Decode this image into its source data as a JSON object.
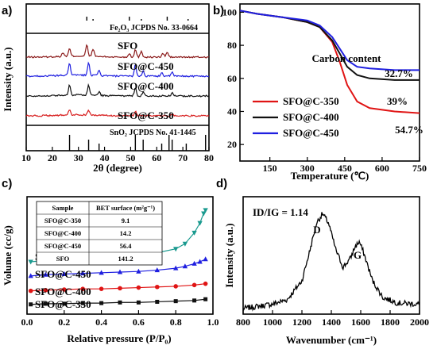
{
  "chart_data": [
    {
      "panel": "a)",
      "type": "line",
      "xlabel": "2θ (degree)",
      "ylabel": "Intensity (a.u.)",
      "xlim": [
        10,
        80
      ],
      "xticks": [
        10,
        20,
        30,
        40,
        50,
        60,
        70,
        80
      ],
      "reference_top": {
        "label": "Fe2O3 JCPDS No. 33-0664",
        "peaks": [
          24.1,
          33.2,
          35.6,
          40.9,
          49.5,
          54.1,
          62.4,
          64.0,
          72.0,
          75.5
        ]
      },
      "reference_bottom": {
        "label": "SnO2 JCPDS No. 41-1445",
        "peaks": [
          26.6,
          33.9,
          37.9,
          51.8,
          54.8,
          61.9,
          64.7,
          65.9,
          71.3,
          78.7
        ]
      },
      "series": [
        {
          "name": "SFO",
          "color": "#8b1a1a",
          "peaks": [
            [
              24.1,
              0.3
            ],
            [
              26.6,
              0.6
            ],
            [
              33.2,
              0.9
            ],
            [
              35.6,
              0.6
            ],
            [
              49.5,
              0.3
            ],
            [
              51.8,
              0.6
            ],
            [
              54.1,
              0.5
            ],
            [
              62.4,
              0.3
            ],
            [
              64.0,
              0.4
            ]
          ]
        },
        {
          "name": "SFO@C-450",
          "color": "#1f1fe0",
          "peaks": [
            [
              26.6,
              1.0
            ],
            [
              33.9,
              1.0
            ],
            [
              37.9,
              0.4
            ],
            [
              51.8,
              0.9
            ],
            [
              54.8,
              0.4
            ],
            [
              61.9,
              0.3
            ],
            [
              65.9,
              0.3
            ]
          ]
        },
        {
          "name": "SFO@C-400",
          "color": "#111111",
          "peaks": [
            [
              26.6,
              0.8
            ],
            [
              33.9,
              0.8
            ],
            [
              37.9,
              0.3
            ],
            [
              51.8,
              0.7
            ],
            [
              54.8,
              0.3
            ],
            [
              65.9,
              0.25
            ]
          ]
        },
        {
          "name": "SFO@C-350",
          "color": "#d71c1c",
          "peaks": [
            [
              26.6,
              0.4
            ],
            [
              33.9,
              0.4
            ],
            [
              51.8,
              0.35
            ],
            [
              65.9,
              0.15
            ]
          ]
        }
      ]
    },
    {
      "panel": "b)",
      "type": "line",
      "xlabel": "Temperature (℃)",
      "ylabel": "",
      "xlim": [
        30,
        750
      ],
      "ylim": [
        10,
        105
      ],
      "xticks": [
        150,
        300,
        450,
        600,
        750
      ],
      "yticks": [
        20,
        40,
        60,
        80,
        100
      ],
      "legend_title": "Carbon content",
      "legend_position": "bottom-left",
      "series": [
        {
          "name": "SFO@C-350",
          "color": "#e01414",
          "carbon": "54.7%",
          "x": [
            30,
            100,
            200,
            300,
            350,
            400,
            430,
            460,
            500,
            550,
            650,
            750
          ],
          "y": [
            101,
            99,
            97,
            94,
            91,
            82,
            70,
            56,
            46,
            42,
            40,
            39
          ]
        },
        {
          "name": "SFO@C-400",
          "color": "#111111",
          "carbon": "39%",
          "x": [
            30,
            100,
            200,
            300,
            350,
            400,
            430,
            460,
            500,
            550,
            650,
            750
          ],
          "y": [
            101,
            99,
            97,
            94,
            91,
            83,
            75,
            67,
            62,
            60,
            59,
            59
          ]
        },
        {
          "name": "SFO@C-450",
          "color": "#1f1fe0",
          "carbon": "32.7%",
          "x": [
            30,
            100,
            200,
            300,
            350,
            400,
            430,
            460,
            500,
            550,
            650,
            750
          ],
          "y": [
            101,
            99,
            97,
            95,
            92,
            85,
            78,
            71,
            67,
            66,
            65,
            65
          ]
        }
      ]
    },
    {
      "panel": "c)",
      "type": "line",
      "xlabel": "Relative pressure (P/P₀)",
      "ylabel": "Volume (cc/g)",
      "xlim": [
        0,
        1.0
      ],
      "xticks": [
        0.0,
        0.2,
        0.4,
        0.6,
        0.8,
        1.0
      ],
      "table": {
        "headers": [
          "Sample",
          "BET surface (m²g⁻¹)"
        ],
        "rows": [
          [
            "SFO@C-350",
            "9.1"
          ],
          [
            "SFO@C-400",
            "14.2"
          ],
          [
            "SFO@C-450",
            "56.4"
          ],
          [
            "SFO",
            "141.2"
          ]
        ]
      },
      "series": [
        {
          "name": "SFO",
          "color": "#1a9a8f",
          "marker": "triangle-down",
          "offset": 0.72,
          "x": [
            0.02,
            0.1,
            0.2,
            0.3,
            0.4,
            0.5,
            0.6,
            0.7,
            0.8,
            0.85,
            0.9,
            0.93,
            0.95,
            0.96
          ],
          "y": [
            0.0,
            0.02,
            0.04,
            0.05,
            0.07,
            0.09,
            0.11,
            0.14,
            0.2,
            0.28,
            0.45,
            0.6,
            0.75,
            0.8
          ]
        },
        {
          "name": "SFO@C-450",
          "color": "#1f1fe0",
          "marker": "triangle-up",
          "offset": 0.5,
          "x": [
            0.02,
            0.1,
            0.2,
            0.3,
            0.4,
            0.5,
            0.6,
            0.7,
            0.8,
            0.85,
            0.9,
            0.93,
            0.96
          ],
          "y": [
            0.0,
            0.02,
            0.03,
            0.04,
            0.05,
            0.06,
            0.07,
            0.09,
            0.12,
            0.15,
            0.19,
            0.22,
            0.26
          ]
        },
        {
          "name": "SFO@C-400",
          "color": "#e01414",
          "marker": "circle",
          "offset": 0.27,
          "x": [
            0.02,
            0.1,
            0.2,
            0.3,
            0.4,
            0.5,
            0.6,
            0.7,
            0.8,
            0.9,
            0.96
          ],
          "y": [
            0.0,
            0.01,
            0.02,
            0.03,
            0.03,
            0.04,
            0.05,
            0.06,
            0.07,
            0.09,
            0.11
          ]
        },
        {
          "name": "SFO@C-350",
          "color": "#111111",
          "marker": "square",
          "offset": 0.06,
          "x": [
            0.02,
            0.1,
            0.2,
            0.3,
            0.4,
            0.5,
            0.6,
            0.7,
            0.8,
            0.9,
            0.96
          ],
          "y": [
            0.0,
            0.01,
            0.01,
            0.02,
            0.02,
            0.03,
            0.03,
            0.04,
            0.05,
            0.06,
            0.08
          ]
        }
      ]
    },
    {
      "panel": "d)",
      "type": "line",
      "xlabel": "Wavenumber (cm⁻¹)",
      "ylabel": "Intensity (a.u.)",
      "xlim": [
        800,
        2000
      ],
      "xticks": [
        800,
        1000,
        1200,
        1400,
        1600,
        1800,
        2000
      ],
      "annotation": "ID/IG = 1.14",
      "peak_labels": [
        {
          "text": "D",
          "x": 1340
        },
        {
          "text": "G",
          "x": 1590
        }
      ],
      "series": [
        {
          "name": "",
          "color": "#000000",
          "x": [
            800,
            900,
            1000,
            1100,
            1200,
            1250,
            1300,
            1340,
            1380,
            1430,
            1480,
            1530,
            1560,
            1590,
            1620,
            1680,
            1750,
            1850,
            2000
          ],
          "y": [
            0.05,
            0.07,
            0.09,
            0.13,
            0.3,
            0.55,
            0.82,
            0.9,
            0.82,
            0.58,
            0.42,
            0.5,
            0.6,
            0.65,
            0.55,
            0.3,
            0.15,
            0.1,
            0.09
          ]
        }
      ]
    }
  ],
  "labels": {
    "panel_a": "a)",
    "panel_b": "b)",
    "panel_c": "c)",
    "panel_d": "d)",
    "a_ref_top": "Fe₂O₃ JCPDS No. 33-0664",
    "a_ref_bottom": "SnO₂ JCPDS No. 41-1445",
    "a_xlabel": "2θ (degree)",
    "a_ylabel": "Intensity (a.u.)",
    "b_xlabel": "Temperature (℃)",
    "b_legend_title": "Carbon content",
    "c_xlabel": "Relative pressure (P/P₀)",
    "c_ylabel": "Volume (cc/g)",
    "c_th1": "Sample",
    "c_th2": "BET surface (m²g⁻¹)",
    "d_xlabel": "Wavenumber (cm⁻¹)",
    "d_ylabel": "Intensity (a.u.)",
    "d_ratio": "ID/IG = 1.14",
    "d_peak_D": "D",
    "d_peak_G": "G"
  }
}
